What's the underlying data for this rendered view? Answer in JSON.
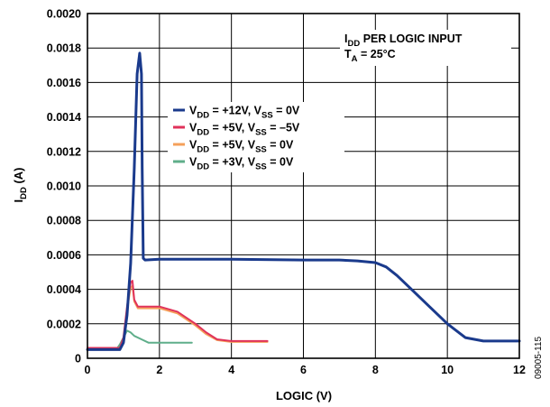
{
  "chart_data": {
    "type": "line",
    "xlabel": "LOGIC (V)",
    "ylabel": {
      "main": "I",
      "sub": "DD",
      "unit": " (A)"
    },
    "xlim": [
      0,
      12
    ],
    "ylim": [
      0,
      0.002
    ],
    "x_ticks": [
      "0",
      "2",
      "4",
      "6",
      "8",
      "10",
      "12"
    ],
    "y_ticks": [
      "0",
      "0.0002",
      "0.0004",
      "0.0006",
      "0.0008",
      "0.0010",
      "0.0012",
      "0.0014",
      "0.0016",
      "0.0018",
      "0.0020"
    ],
    "grid": true,
    "annotation": {
      "line1": {
        "main": "I",
        "sub": "DD",
        "rest": " PER LOGIC INPUT"
      },
      "line2": {
        "main": "T",
        "sub": "A",
        "rest": " = 25°C"
      }
    },
    "legend_placement": "upper-middle",
    "series": [
      {
        "legend": [
          {
            "t": "V"
          },
          {
            "t": "DD",
            "sub": true
          },
          {
            "t": " = +12V, V"
          },
          {
            "t": "SS",
            "sub": true
          },
          {
            "t": " = 0V"
          }
        ],
        "color": "#1a3a8c",
        "width": 3,
        "x": [
          0,
          0.9,
          1.0,
          1.1,
          1.2,
          1.3,
          1.38,
          1.45,
          1.5,
          1.52,
          1.55,
          1.6,
          2.0,
          4.0,
          6.0,
          7.0,
          7.5,
          8.0,
          8.3,
          8.6,
          9.0,
          9.5,
          10.0,
          10.5,
          11.0,
          11.5,
          12.0
        ],
        "y": [
          5e-05,
          5e-05,
          9e-05,
          0.00025,
          0.00055,
          0.0011,
          0.00165,
          0.00177,
          0.00165,
          0.0011,
          0.00058,
          0.00057,
          0.000575,
          0.000575,
          0.00057,
          0.00057,
          0.000565,
          0.000555,
          0.00053,
          0.00048,
          0.0004,
          0.0003,
          0.0002,
          0.00012,
          0.0001,
          0.0001,
          0.0001
        ]
      },
      {
        "legend": [
          {
            "t": "V"
          },
          {
            "t": "DD",
            "sub": true
          },
          {
            "t": " = +5V, V"
          },
          {
            "t": "SS",
            "sub": true
          },
          {
            "t": " = –5V"
          }
        ],
        "color": "#e0325a",
        "width": 2,
        "x": [
          0,
          0.9,
          1.0,
          1.1,
          1.2,
          1.25,
          1.3,
          1.4,
          1.6,
          2.0,
          2.5,
          3.0,
          3.3,
          3.6,
          4.0,
          4.5,
          5.0
        ],
        "y": [
          6e-05,
          6e-05,
          0.00012,
          0.0003,
          0.00044,
          0.00045,
          0.00034,
          0.0003,
          0.0003,
          0.0003,
          0.00027,
          0.0002,
          0.00015,
          0.00011,
          0.0001,
          0.0001,
          0.0001
        ]
      },
      {
        "legend": [
          {
            "t": "V"
          },
          {
            "t": "DD",
            "sub": true
          },
          {
            "t": " = +5V, V"
          },
          {
            "t": "SS",
            "sub": true
          },
          {
            "t": " = 0V"
          }
        ],
        "color": "#f5a05a",
        "width": 2,
        "x": [
          0,
          0.9,
          1.0,
          1.1,
          1.2,
          1.25,
          1.3,
          1.4,
          1.6,
          2.0,
          2.5,
          3.0,
          3.3,
          3.6,
          4.0,
          4.5,
          5.0
        ],
        "y": [
          5.5e-05,
          5.5e-05,
          0.00011,
          0.00028,
          0.00041,
          0.00042,
          0.00033,
          0.00029,
          0.00029,
          0.00029,
          0.00026,
          0.00019,
          0.00014,
          0.000105,
          9.5e-05,
          9.5e-05,
          9.5e-05
        ]
      },
      {
        "legend": [
          {
            "t": "V"
          },
          {
            "t": "DD",
            "sub": true
          },
          {
            "t": " = +3V, V"
          },
          {
            "t": "SS",
            "sub": true
          },
          {
            "t": " = 0V"
          }
        ],
        "color": "#5fae8a",
        "width": 2,
        "x": [
          0,
          0.8,
          0.9,
          1.0,
          1.1,
          1.2,
          1.3,
          1.5,
          1.7,
          2.0,
          2.9
        ],
        "y": [
          5e-05,
          5e-05,
          8e-05,
          0.00012,
          0.00016,
          0.00015,
          0.00013,
          0.00011,
          9e-05,
          9e-05,
          9e-05
        ]
      }
    ]
  },
  "figure_id": "09005-115"
}
